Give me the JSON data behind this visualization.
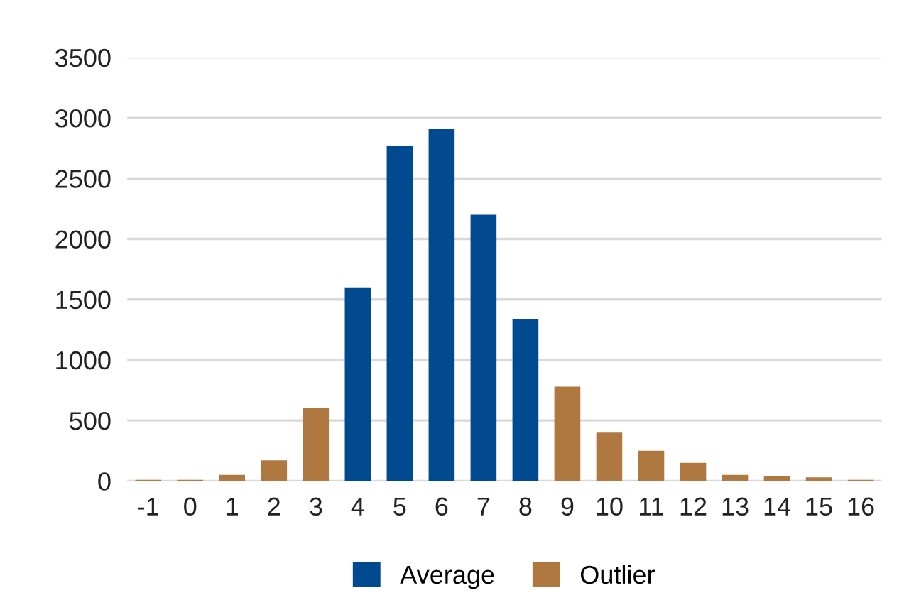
{
  "chart_data": {
    "type": "bar",
    "categories": [
      "-1",
      "0",
      "1",
      "2",
      "3",
      "4",
      "5",
      "6",
      "7",
      "8",
      "9",
      "10",
      "11",
      "12",
      "13",
      "14",
      "15",
      "16"
    ],
    "series": [
      {
        "name": "Average",
        "color": "#014a8f",
        "values": [
          null,
          null,
          null,
          null,
          null,
          1600,
          2770,
          2910,
          2200,
          1340,
          null,
          null,
          null,
          null,
          null,
          null,
          null,
          null
        ]
      },
      {
        "name": "Outlier",
        "color": "#b07841",
        "values": [
          10,
          10,
          50,
          170,
          600,
          null,
          null,
          null,
          null,
          null,
          780,
          400,
          250,
          150,
          50,
          40,
          30,
          10
        ]
      }
    ],
    "ylim": [
      0,
      3500
    ],
    "yticks": [
      0,
      500,
      1000,
      1500,
      2000,
      2500,
      3000,
      3500
    ],
    "grid": "y",
    "legend": "bottom"
  }
}
